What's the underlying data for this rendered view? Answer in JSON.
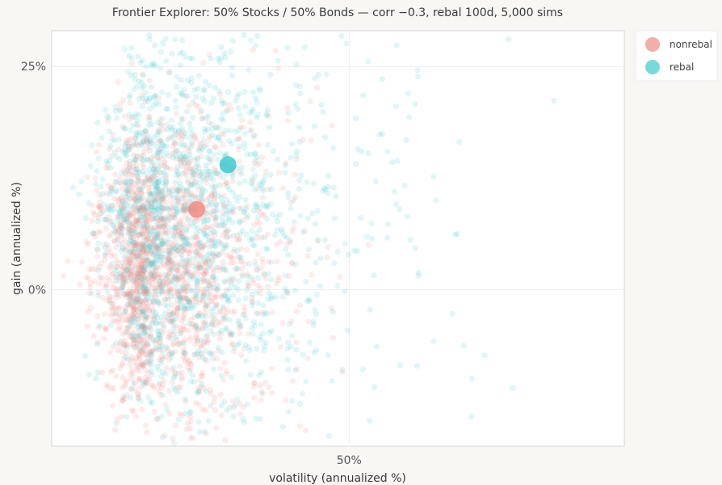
{
  "chart_data": {
    "type": "scatter",
    "title": "Frontier Explorer: 50% Stocks / 50% Bonds — corr −0.3, rebal 100d, 5,000 sims",
    "xlabel": "volatility (annualized %)",
    "ylabel": "gain (annualized %)",
    "xlim": [
      10,
      87
    ],
    "ylim": [
      -17.5,
      29
    ],
    "x_ticks": [
      {
        "value": 50,
        "label": "50%"
      }
    ],
    "y_ticks": [
      {
        "value": 0,
        "label": "0%"
      },
      {
        "value": 25,
        "label": "25%"
      }
    ],
    "grid": true,
    "legend_position": "right",
    "n_sims": 5000,
    "series": [
      {
        "name": "nonrebal",
        "color": "#f08b84",
        "mean": {
          "x": 29.5,
          "y": 9
        },
        "cloud": {
          "center_x": 23,
          "center_y": 3,
          "spread_x": 7,
          "spread_y": 8,
          "tail_x": 8
        }
      },
      {
        "name": "rebal",
        "color": "#3ec9cf",
        "mean": {
          "x": 33.7,
          "y": 14
        },
        "cloud": {
          "center_x": 25,
          "center_y": 7,
          "spread_x": 9,
          "spread_y": 10,
          "tail_x": 14
        }
      }
    ]
  }
}
